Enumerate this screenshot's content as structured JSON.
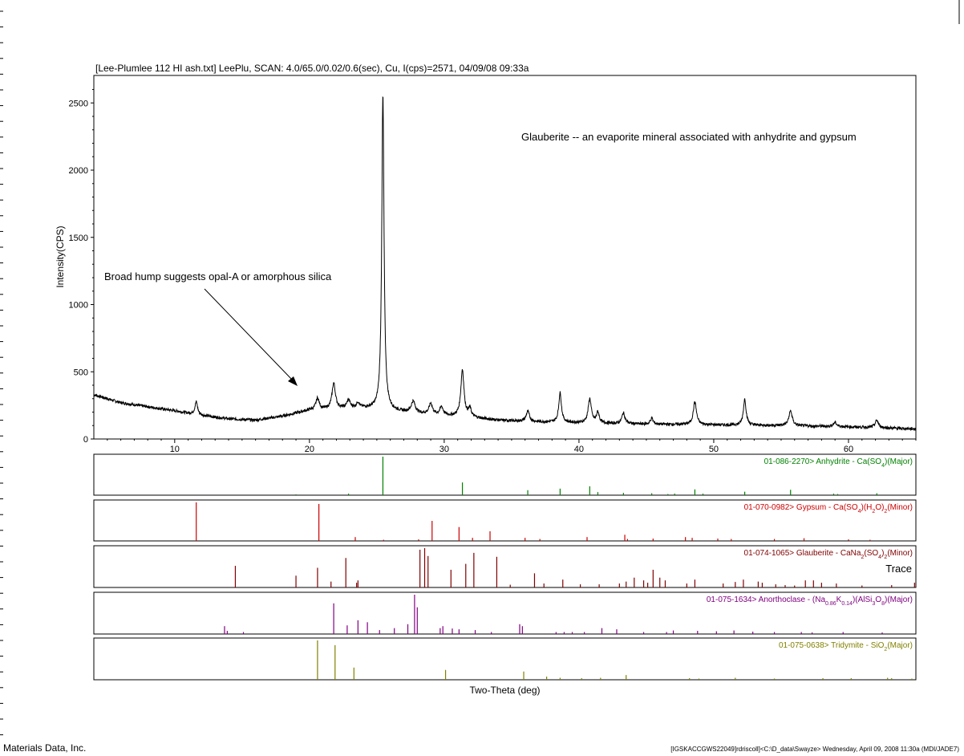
{
  "title": "[Lee-Plumlee 112 HI ash.txt] LeePlu, SCAN: 4.0/65.0/0.02/0.6(sec), Cu, I(cps)=2571, 04/09/08 09:33a",
  "annotations": {
    "glauberite_note": "Glauberite -- an evaporite mineral associated with anhydrite and gypsum",
    "hump_note": "Broad hump suggests opal-A or amorphous silica",
    "trace_note": "Trace"
  },
  "footer": {
    "left": "Materials Data, Inc.",
    "right": "[IGSKACCGWS22049]rdriscoll]<C:\\D_data\\Swayze> Wednesday, April 09, 2008 11:30a (MDI/JADE7)"
  },
  "colors": {
    "pattern": "#000000",
    "anhydrite": "#008000",
    "gypsum": "#cc0000",
    "glauberite": "#800000",
    "anorthoclase": "#800080",
    "tridymite": "#808000"
  },
  "chart_data": {
    "type": "line",
    "xlabel": "Two-Theta (deg)",
    "ylabel": "Intensity(CPS)",
    "xlim": [
      4,
      65
    ],
    "ylim": [
      0,
      2700
    ],
    "x_ticks": [
      10,
      20,
      30,
      40,
      50,
      60
    ],
    "y_ticks": [
      0,
      500,
      1000,
      1500,
      2000,
      2500
    ],
    "background": [
      [
        4,
        330
      ],
      [
        6,
        270
      ],
      [
        8,
        240
      ],
      [
        10,
        210
      ],
      [
        12,
        175
      ],
      [
        14,
        150
      ],
      [
        16,
        140
      ],
      [
        18,
        170
      ],
      [
        20,
        215
      ],
      [
        22,
        225
      ],
      [
        24,
        230
      ],
      [
        26,
        210
      ],
      [
        28,
        190
      ],
      [
        30,
        175
      ],
      [
        32,
        160
      ],
      [
        34,
        140
      ],
      [
        36,
        130
      ],
      [
        40,
        120
      ],
      [
        45,
        110
      ],
      [
        50,
        105
      ],
      [
        55,
        100
      ],
      [
        60,
        90
      ],
      [
        65,
        75
      ]
    ],
    "peaks": [
      [
        11.6,
        95,
        0.12
      ],
      [
        20.6,
        85,
        0.15
      ],
      [
        21.8,
        190,
        0.15
      ],
      [
        22.9,
        60,
        0.15
      ],
      [
        23.6,
        40,
        0.12
      ],
      [
        25.45,
        2345,
        0.1
      ],
      [
        27.7,
        85,
        0.18
      ],
      [
        29.0,
        80,
        0.15
      ],
      [
        29.8,
        60,
        0.15
      ],
      [
        31.35,
        350,
        0.14
      ],
      [
        31.9,
        60,
        0.12
      ],
      [
        36.2,
        75,
        0.15
      ],
      [
        38.6,
        220,
        0.12
      ],
      [
        40.8,
        180,
        0.14
      ],
      [
        41.4,
        80,
        0.12
      ],
      [
        43.3,
        80,
        0.14
      ],
      [
        45.4,
        45,
        0.12
      ],
      [
        48.6,
        170,
        0.14
      ],
      [
        52.3,
        195,
        0.12
      ],
      [
        55.7,
        110,
        0.15
      ],
      [
        59.0,
        30,
        0.15
      ],
      [
        62.1,
        55,
        0.15
      ]
    ],
    "reference_patterns": [
      {
        "name": "01-086-2270> Anhydrite - Ca(SO4)(Major)",
        "label_parts": [
          [
            "01-086-2270> Anhydrite - Ca(SO",
            ""
          ],
          [
            "4",
            "sub"
          ],
          [
            ")(Major)",
            ""
          ]
        ],
        "color": "#008000",
        "sticks": [
          [
            25.45,
            100
          ],
          [
            31.35,
            33
          ],
          [
            38.6,
            17
          ],
          [
            40.8,
            23
          ],
          [
            36.2,
            13
          ],
          [
            48.6,
            15
          ],
          [
            52.3,
            9
          ],
          [
            55.7,
            14
          ],
          [
            43.3,
            6
          ],
          [
            22.9,
            4
          ],
          [
            41.4,
            8
          ],
          [
            45.4,
            5
          ],
          [
            49.2,
            4
          ],
          [
            47.1,
            4
          ],
          [
            58.9,
            4
          ],
          [
            62.1,
            5
          ],
          [
            59.2,
            3
          ],
          [
            19.0,
            2
          ],
          [
            46.6,
            3
          ]
        ]
      },
      {
        "name": "01-070-0982> Gypsum - Ca(SO4)(H2O)2(Minor)",
        "label_parts": [
          [
            "01-070-0982> Gypsum - Ca(SO",
            ""
          ],
          [
            "4",
            "sub"
          ],
          [
            ")(H",
            ""
          ],
          [
            "2",
            "sub"
          ],
          [
            "O)",
            ""
          ],
          [
            "2",
            "sub"
          ],
          [
            "(Minor)",
            ""
          ]
        ],
        "color": "#cc0000",
        "sticks": [
          [
            11.6,
            100
          ],
          [
            20.7,
            96
          ],
          [
            23.4,
            10
          ],
          [
            29.1,
            52
          ],
          [
            31.1,
            36
          ],
          [
            33.4,
            25
          ],
          [
            32.1,
            8
          ],
          [
            36.0,
            8
          ],
          [
            37.1,
            5
          ],
          [
            40.6,
            10
          ],
          [
            43.4,
            16
          ],
          [
            43.6,
            5
          ],
          [
            45.5,
            6
          ],
          [
            47.9,
            10
          ],
          [
            48.4,
            8
          ],
          [
            50.3,
            6
          ],
          [
            51.3,
            5
          ],
          [
            54.5,
            5
          ],
          [
            56.7,
            7
          ],
          [
            60.0,
            4
          ],
          [
            61.6,
            3
          ],
          [
            25.5,
            3
          ],
          [
            28.1,
            4
          ]
        ]
      },
      {
        "name": "01-074-1065> Glauberite - CaNa2(SO4)2(Minor)",
        "label_parts": [
          [
            "01-074-1065> Glauberite - CaNa",
            ""
          ],
          [
            "2",
            "sub"
          ],
          [
            "(SO",
            ""
          ],
          [
            "4",
            "sub"
          ],
          [
            ")",
            ""
          ],
          [
            "2",
            "sub"
          ],
          [
            "(Minor)",
            ""
          ]
        ],
        "color": "#800000",
        "sticks": [
          [
            14.5,
            55
          ],
          [
            19.0,
            30
          ],
          [
            20.6,
            50
          ],
          [
            21.6,
            15
          ],
          [
            22.7,
            75
          ],
          [
            23.5,
            12
          ],
          [
            23.6,
            18
          ],
          [
            28.2,
            96
          ],
          [
            28.55,
            100
          ],
          [
            28.8,
            80
          ],
          [
            30.5,
            45
          ],
          [
            31.6,
            60
          ],
          [
            32.2,
            88
          ],
          [
            33.9,
            78
          ],
          [
            34.9,
            7
          ],
          [
            36.7,
            36
          ],
          [
            37.4,
            10
          ],
          [
            38.8,
            20
          ],
          [
            40.1,
            8
          ],
          [
            41.5,
            8
          ],
          [
            43.0,
            10
          ],
          [
            43.5,
            15
          ],
          [
            44.1,
            25
          ],
          [
            44.8,
            18
          ],
          [
            45.1,
            12
          ],
          [
            45.5,
            45
          ],
          [
            46.0,
            25
          ],
          [
            46.4,
            18
          ],
          [
            48.0,
            10
          ],
          [
            48.6,
            20
          ],
          [
            50.7,
            10
          ],
          [
            51.6,
            14
          ],
          [
            52.2,
            20
          ],
          [
            53.3,
            15
          ],
          [
            53.6,
            12
          ],
          [
            54.6,
            8
          ],
          [
            55.3,
            6
          ],
          [
            56.0,
            5
          ],
          [
            56.8,
            18
          ],
          [
            57.4,
            18
          ],
          [
            58.0,
            12
          ],
          [
            59.1,
            10
          ],
          [
            61.0,
            5
          ],
          [
            63.2,
            6
          ],
          [
            64.9,
            12
          ]
        ]
      },
      {
        "name": "01-075-1634> Anorthoclase - (Na0.86K0.14)(AlSi3O8)(Major)",
        "label_parts": [
          [
            "01-075-1634> Anorthoclase - (Na",
            ""
          ],
          [
            "0.86",
            "sub"
          ],
          [
            "K",
            ""
          ],
          [
            "0.14",
            "sub"
          ],
          [
            ")(AlSi",
            ""
          ],
          [
            "3",
            "sub"
          ],
          [
            "O",
            ""
          ],
          [
            "8",
            "sub"
          ],
          [
            ")(Major)",
            ""
          ]
        ],
        "color": "#800080",
        "sticks": [
          [
            13.7,
            20
          ],
          [
            13.9,
            8
          ],
          [
            15.1,
            5
          ],
          [
            21.8,
            78
          ],
          [
            22.8,
            22
          ],
          [
            23.6,
            35
          ],
          [
            24.3,
            30
          ],
          [
            25.2,
            10
          ],
          [
            26.3,
            15
          ],
          [
            27.3,
            25
          ],
          [
            27.8,
            100
          ],
          [
            28.0,
            68
          ],
          [
            29.7,
            15
          ],
          [
            29.9,
            20
          ],
          [
            30.6,
            14
          ],
          [
            31.1,
            12
          ],
          [
            32.3,
            10
          ],
          [
            33.5,
            5
          ],
          [
            35.6,
            25
          ],
          [
            35.8,
            20
          ],
          [
            38.3,
            5
          ],
          [
            38.9,
            5
          ],
          [
            39.5,
            5
          ],
          [
            40.4,
            5
          ],
          [
            41.7,
            15
          ],
          [
            42.8,
            12
          ],
          [
            44.8,
            5
          ],
          [
            46.5,
            5
          ],
          [
            47.0,
            9
          ],
          [
            48.8,
            8
          ],
          [
            50.2,
            7
          ],
          [
            51.5,
            9
          ],
          [
            52.9,
            6
          ],
          [
            54.5,
            5
          ],
          [
            56.5,
            5
          ],
          [
            57.3,
            4
          ],
          [
            59.6,
            5
          ],
          [
            62.5,
            4
          ]
        ]
      },
      {
        "name": "01-075-0638> Tridymite - SiO2(Major)",
        "label_parts": [
          [
            "01-075-0638> Tridymite - SiO",
            ""
          ],
          [
            "2",
            "sub"
          ],
          [
            "(Major)",
            ""
          ]
        ],
        "color": "#808000",
        "sticks": [
          [
            20.6,
            100
          ],
          [
            21.9,
            88
          ],
          [
            23.3,
            31
          ],
          [
            30.1,
            25
          ],
          [
            35.9,
            21
          ],
          [
            37.6,
            8
          ],
          [
            38.6,
            5
          ],
          [
            40.2,
            4
          ],
          [
            41.6,
            5
          ],
          [
            43.5,
            12
          ],
          [
            48.2,
            4
          ],
          [
            48.9,
            3
          ],
          [
            51.6,
            5
          ],
          [
            54.5,
            3
          ],
          [
            58.1,
            4
          ],
          [
            60.2,
            4
          ],
          [
            62.9,
            5
          ],
          [
            63.2,
            4
          ],
          [
            64.7,
            3
          ]
        ]
      }
    ]
  }
}
